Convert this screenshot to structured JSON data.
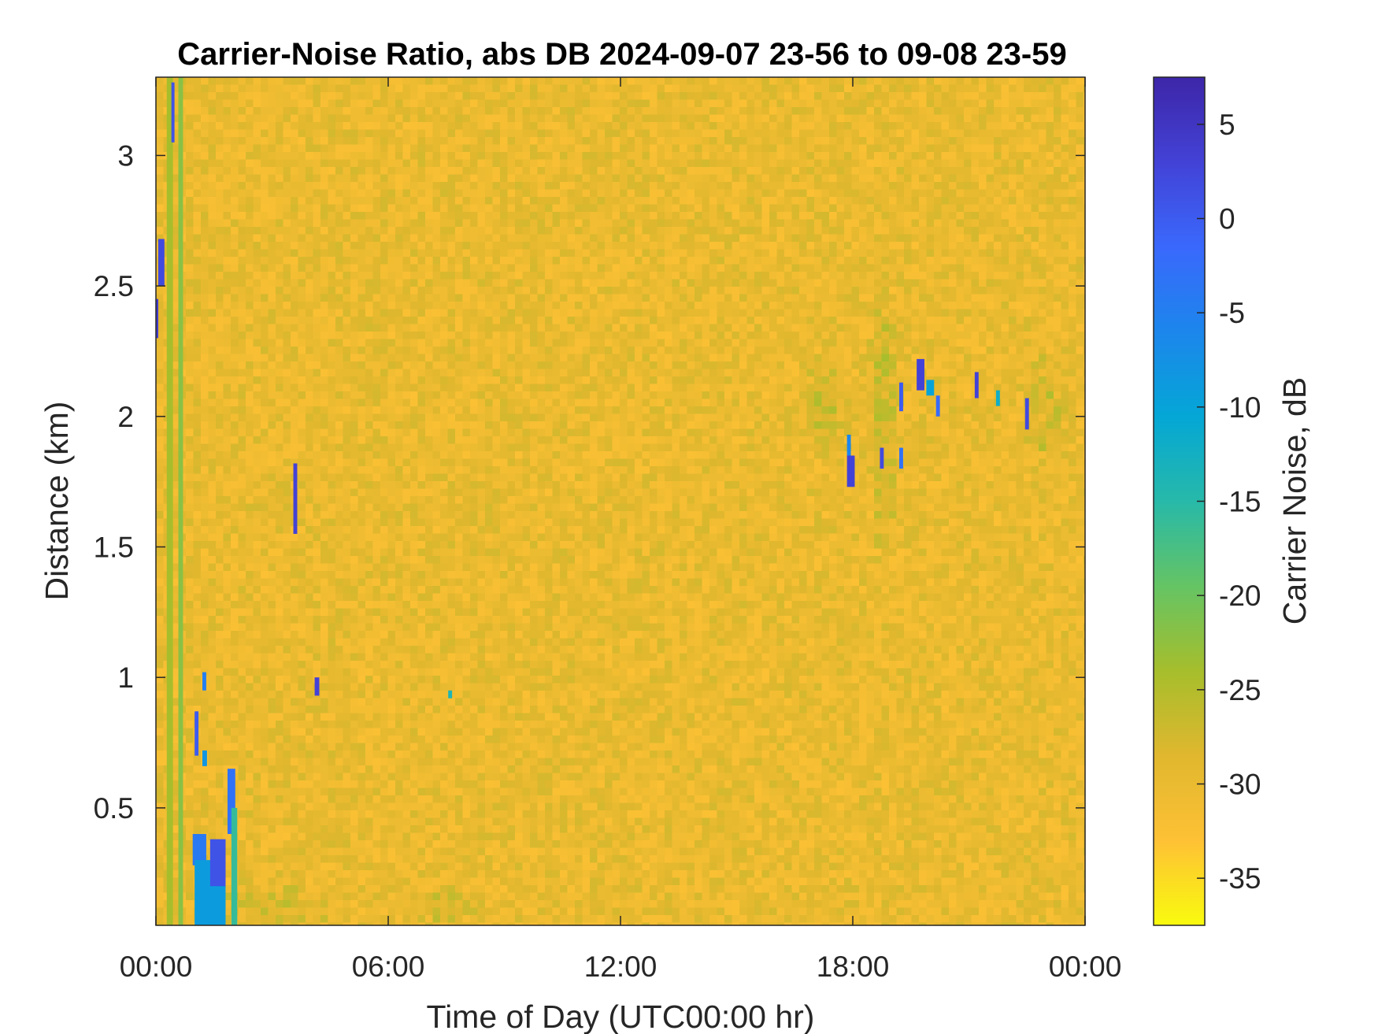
{
  "chart_data": {
    "type": "heatmap",
    "title": "Carrier-Noise Ratio, abs DB 2024-09-07 23-56 to 09-08 23-59",
    "xlabel": "Time of Day (UTC00:00 hr)",
    "ylabel": "Distance (km)",
    "colorbar_label": "Carrier Noise, dB",
    "x_range_hours": [
      0,
      24
    ],
    "y_range_km": [
      0.05,
      3.3
    ],
    "color_range_db": [
      -37.5,
      7.5
    ],
    "background_db": -30,
    "x_ticks": [
      {
        "value": 0,
        "label": "00:00"
      },
      {
        "value": 6,
        "label": "06:00"
      },
      {
        "value": 12,
        "label": "12:00"
      },
      {
        "value": 18,
        "label": "18:00"
      },
      {
        "value": 24,
        "label": "00:00"
      }
    ],
    "y_ticks": [
      {
        "value": 0.5,
        "label": "0.5"
      },
      {
        "value": 1,
        "label": "1"
      },
      {
        "value": 1.5,
        "label": "1.5"
      },
      {
        "value": 2,
        "label": "2"
      },
      {
        "value": 2.5,
        "label": "2.5"
      },
      {
        "value": 3,
        "label": "3"
      }
    ],
    "colorbar_ticks": [
      {
        "value": 5,
        "label": "5"
      },
      {
        "value": 0,
        "label": "0"
      },
      {
        "value": -5,
        "label": "-5"
      },
      {
        "value": -10,
        "label": "-10"
      },
      {
        "value": -15,
        "label": "-15"
      },
      {
        "value": -20,
        "label": "-20"
      },
      {
        "value": -25,
        "label": "-25"
      },
      {
        "value": -30,
        "label": "-30"
      },
      {
        "value": -35,
        "label": "-35"
      }
    ],
    "colormap": [
      "#f9fb0e",
      "#fec135",
      "#e0b72e",
      "#a6be2c",
      "#65c464",
      "#27b9a9",
      "#04a7d6",
      "#1c86ec",
      "#3a68fc",
      "#4342d6",
      "#3d26a8"
    ],
    "features": [
      {
        "t_start": 0.28,
        "t_end": 0.44,
        "d_start": 0.05,
        "d_end": 3.3,
        "db": -24
      },
      {
        "t_start": 0.58,
        "t_end": 0.7,
        "d_start": 0.05,
        "d_end": 3.3,
        "db": -22
      },
      {
        "t_start": 0.0,
        "t_end": 0.06,
        "d_start": 2.3,
        "d_end": 2.45,
        "db": 4
      },
      {
        "t_start": 0.06,
        "t_end": 0.22,
        "d_start": 2.5,
        "d_end": 2.68,
        "db": 2
      },
      {
        "t_start": 0.4,
        "t_end": 0.48,
        "d_start": 3.05,
        "d_end": 3.28,
        "db": 1
      },
      {
        "t_start": 1.0,
        "t_end": 1.1,
        "d_start": 0.7,
        "d_end": 0.87,
        "db": 0
      },
      {
        "t_start": 1.2,
        "t_end": 1.3,
        "d_start": 0.95,
        "d_end": 1.02,
        "db": -5
      },
      {
        "t_start": 1.2,
        "t_end": 1.32,
        "d_start": 0.66,
        "d_end": 0.72,
        "db": -8
      },
      {
        "t_start": 0.95,
        "t_end": 1.3,
        "d_start": 0.28,
        "d_end": 0.4,
        "db": -4
      },
      {
        "t_start": 1.0,
        "t_end": 1.8,
        "d_start": 0.05,
        "d_end": 0.3,
        "db": -9
      },
      {
        "t_start": 1.4,
        "t_end": 1.8,
        "d_start": 0.2,
        "d_end": 0.38,
        "db": 1
      },
      {
        "t_start": 1.85,
        "t_end": 2.05,
        "d_start": 0.4,
        "d_end": 0.65,
        "db": -3
      },
      {
        "t_start": 1.95,
        "t_end": 2.1,
        "d_start": 0.05,
        "d_end": 0.5,
        "db": -16
      },
      {
        "t_start": 3.55,
        "t_end": 3.65,
        "d_start": 1.55,
        "d_end": 1.82,
        "db": 3
      },
      {
        "t_start": 4.1,
        "t_end": 4.22,
        "d_start": 0.93,
        "d_end": 1.0,
        "db": 3
      },
      {
        "t_start": 7.55,
        "t_end": 7.65,
        "d_start": 0.92,
        "d_end": 0.95,
        "db": -14
      },
      {
        "t_start": 17.85,
        "t_end": 18.05,
        "d_start": 1.73,
        "d_end": 1.85,
        "db": 3
      },
      {
        "t_start": 17.85,
        "t_end": 17.95,
        "d_start": 1.85,
        "d_end": 1.93,
        "db": -6
      },
      {
        "t_start": 18.7,
        "t_end": 18.8,
        "d_start": 1.8,
        "d_end": 1.88,
        "db": 2
      },
      {
        "t_start": 19.2,
        "t_end": 19.3,
        "d_start": 1.8,
        "d_end": 1.88,
        "db": -3
      },
      {
        "t_start": 19.2,
        "t_end": 19.3,
        "d_start": 2.02,
        "d_end": 2.13,
        "db": 0
      },
      {
        "t_start": 19.65,
        "t_end": 19.85,
        "d_start": 2.1,
        "d_end": 2.22,
        "db": 3
      },
      {
        "t_start": 19.9,
        "t_end": 20.1,
        "d_start": 2.08,
        "d_end": 2.14,
        "db": -10
      },
      {
        "t_start": 20.15,
        "t_end": 20.25,
        "d_start": 2.0,
        "d_end": 2.08,
        "db": -2
      },
      {
        "t_start": 21.15,
        "t_end": 21.25,
        "d_start": 2.07,
        "d_end": 2.17,
        "db": 3
      },
      {
        "t_start": 21.7,
        "t_end": 21.8,
        "d_start": 2.04,
        "d_end": 2.1,
        "db": -12
      },
      {
        "t_start": 22.45,
        "t_end": 22.55,
        "d_start": 1.95,
        "d_end": 2.07,
        "db": 2
      }
    ],
    "faint_regions": [
      {
        "t_center": 17.3,
        "d_center": 2.05,
        "t_halfwidth": 0.45,
        "d_halfheight": 0.25,
        "db": -27
      },
      {
        "t_center": 18.8,
        "d_center": 2.0,
        "t_halfwidth": 0.45,
        "d_halfheight": 0.6,
        "db": -27
      },
      {
        "t_center": 23.0,
        "d_center": 2.0,
        "t_halfwidth": 0.7,
        "d_halfheight": 0.25,
        "db": -28
      },
      {
        "t_center": 3.0,
        "d_center": 0.12,
        "t_halfwidth": 2.0,
        "d_halfheight": 0.1,
        "db": -28
      },
      {
        "t_center": 7.5,
        "d_center": 0.12,
        "t_halfwidth": 1.0,
        "d_halfheight": 0.08,
        "db": -28
      }
    ]
  }
}
